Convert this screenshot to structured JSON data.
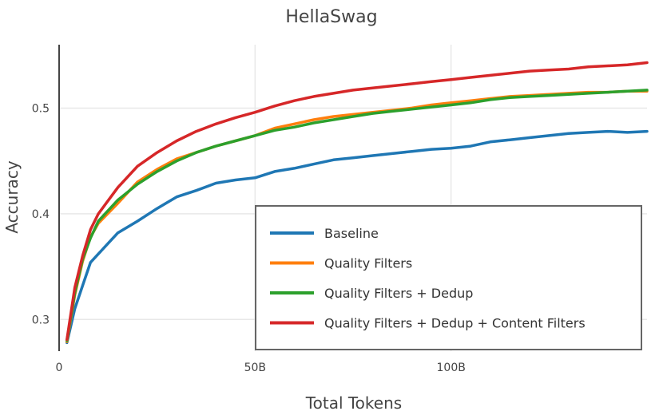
{
  "chart_data": {
    "type": "line",
    "title": "HellaSwag",
    "xlabel": "Total Tokens",
    "ylabel": "Accuracy",
    "xlim": [
      0,
      150000000000
    ],
    "ylim": [
      0.27,
      0.56
    ],
    "x_ticks": [
      {
        "value": 0,
        "label": "0"
      },
      {
        "value": 50000000000,
        "label": "50B"
      },
      {
        "value": 100000000000,
        "label": "100B"
      }
    ],
    "y_ticks": [
      {
        "value": 0.3,
        "label": "0.3"
      },
      {
        "value": 0.4,
        "label": "0.4"
      },
      {
        "value": 0.5,
        "label": "0.5"
      }
    ],
    "grid": true,
    "legend_position": "bottom-right",
    "x": [
      2000000000,
      4000000000,
      6000000000,
      8000000000,
      10000000000,
      15000000000,
      20000000000,
      25000000000,
      30000000000,
      35000000000,
      40000000000,
      45000000000,
      50000000000,
      55000000000,
      60000000000,
      65000000000,
      70000000000,
      75000000000,
      80000000000,
      85000000000,
      90000000000,
      95000000000,
      100000000000,
      105000000000,
      110000000000,
      115000000000,
      120000000000,
      125000000000,
      130000000000,
      135000000000,
      140000000000,
      145000000000,
      150000000000
    ],
    "series": [
      {
        "name": "Baseline",
        "color": "#1f77b4",
        "values": [
          0.278,
          0.31,
          0.332,
          0.354,
          0.362,
          0.382,
          0.393,
          0.405,
          0.416,
          0.422,
          0.429,
          0.432,
          0.434,
          0.44,
          0.443,
          0.447,
          0.451,
          0.453,
          0.455,
          0.457,
          0.459,
          0.461,
          0.462,
          0.464,
          0.468,
          0.47,
          0.472,
          0.474,
          0.476,
          0.477,
          0.478,
          0.477,
          0.478
        ]
      },
      {
        "name": "Quality Filters",
        "color": "#ff7f0e",
        "values": [
          0.279,
          0.323,
          0.355,
          0.378,
          0.391,
          0.41,
          0.43,
          0.442,
          0.452,
          0.458,
          0.464,
          0.469,
          0.474,
          0.481,
          0.485,
          0.489,
          0.492,
          0.494,
          0.496,
          0.498,
          0.5,
          0.503,
          0.505,
          0.507,
          0.509,
          0.511,
          0.512,
          0.513,
          0.514,
          0.515,
          0.515,
          0.516,
          0.516
        ]
      },
      {
        "name": "Quality Filters + Dedup",
        "color": "#2ca02c",
        "values": [
          0.28,
          0.325,
          0.357,
          0.377,
          0.393,
          0.413,
          0.428,
          0.44,
          0.45,
          0.458,
          0.464,
          0.469,
          0.474,
          0.479,
          0.482,
          0.486,
          0.489,
          0.492,
          0.495,
          0.497,
          0.499,
          0.501,
          0.503,
          0.505,
          0.508,
          0.51,
          0.511,
          0.512,
          0.513,
          0.514,
          0.515,
          0.516,
          0.517
        ]
      },
      {
        "name": "Quality Filters + Dedup + Content Filters",
        "color": "#d62728",
        "values": [
          0.281,
          0.33,
          0.36,
          0.385,
          0.4,
          0.425,
          0.445,
          0.458,
          0.469,
          0.478,
          0.485,
          0.491,
          0.496,
          0.502,
          0.507,
          0.511,
          0.514,
          0.517,
          0.519,
          0.521,
          0.523,
          0.525,
          0.527,
          0.529,
          0.531,
          0.533,
          0.535,
          0.536,
          0.537,
          0.539,
          0.54,
          0.541,
          0.543
        ]
      }
    ]
  }
}
